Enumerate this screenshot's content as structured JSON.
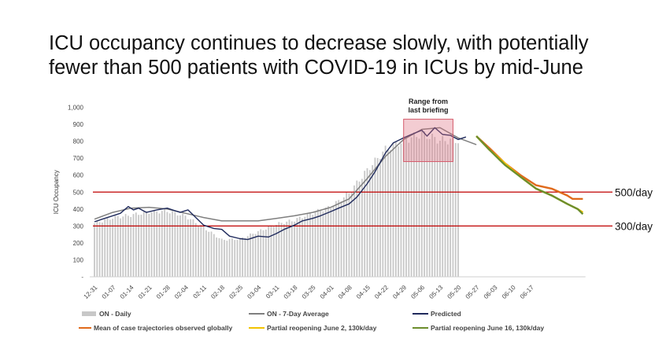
{
  "title_lines": [
    "ICU occupancy continues to decrease slowly, with potentially",
    "fewer than 500 patients with COVID-19 in ICUs by mid-June"
  ],
  "colors": {
    "daily_bar": "#c8c8c8",
    "avg_line": "#7f7f7f",
    "predicted_line": "#1f2a5c",
    "mean_global": "#e06a1b",
    "partial_june2": "#f2c300",
    "partial_june16": "#6c8e2c",
    "threshold": "#c00000",
    "range_box": "#d45a6a"
  },
  "chart_data": {
    "type": "bar",
    "ylabel": "ICU Occupancy",
    "ylim": [
      0,
      1000
    ],
    "yticks": [
      "-",
      "100",
      "200",
      "300",
      "400",
      "500",
      "600",
      "700",
      "800",
      "900",
      "1,000"
    ],
    "xtick_labels": [
      "12-31",
      "01-07",
      "01-14",
      "01-21",
      "01-28",
      "02-04",
      "02-11",
      "02-18",
      "02-25",
      "03-04",
      "03-11",
      "03-18",
      "03-25",
      "04-01",
      "04-08",
      "04-15",
      "04-22",
      "04-29",
      "05-06",
      "05-13",
      "05-20",
      "05-27",
      "06-03",
      "06-10",
      "06-17"
    ],
    "thresholds": [
      {
        "value": 500,
        "label": "500/day"
      },
      {
        "value": 300,
        "label": "300/day"
      }
    ],
    "annotation": {
      "label_lines": [
        "Range from",
        "last briefing"
      ],
      "x_start_day": 119,
      "x_end_day": 138,
      "y_low": 680,
      "y_high": 930
    },
    "series": [
      {
        "name": "ON - Daily",
        "kind": "bar",
        "points": [
          [
            0,
            325
          ],
          [
            7,
            360
          ],
          [
            14,
            375
          ],
          [
            21,
            395
          ],
          [
            28,
            400
          ],
          [
            35,
            370
          ],
          [
            42,
            300
          ],
          [
            49,
            225
          ],
          [
            56,
            230
          ],
          [
            63,
            275
          ],
          [
            70,
            320
          ],
          [
            77,
            345
          ],
          [
            84,
            390
          ],
          [
            91,
            425
          ],
          [
            98,
            510
          ],
          [
            105,
            650
          ],
          [
            112,
            775
          ],
          [
            119,
            830
          ],
          [
            126,
            870
          ],
          [
            133,
            830
          ],
          [
            140,
            830
          ]
        ]
      },
      {
        "name": "ON - 7-Day Average",
        "kind": "line",
        "points": [
          [
            0,
            340
          ],
          [
            7,
            380
          ],
          [
            14,
            405
          ],
          [
            21,
            410
          ],
          [
            28,
            400
          ],
          [
            35,
            375
          ],
          [
            42,
            350
          ],
          [
            49,
            330
          ],
          [
            56,
            330
          ],
          [
            63,
            330
          ],
          [
            70,
            345
          ],
          [
            77,
            360
          ],
          [
            84,
            380
          ],
          [
            91,
            410
          ],
          [
            98,
            460
          ],
          [
            105,
            580
          ],
          [
            112,
            710
          ],
          [
            119,
            810
          ],
          [
            126,
            870
          ],
          [
            133,
            880
          ],
          [
            140,
            820
          ],
          [
            147,
            780
          ]
        ]
      },
      {
        "name": "Predicted",
        "kind": "line",
        "points": [
          [
            0,
            325
          ],
          [
            3,
            340
          ],
          [
            7,
            360
          ],
          [
            10,
            375
          ],
          [
            13,
            415
          ],
          [
            15,
            395
          ],
          [
            17,
            405
          ],
          [
            20,
            380
          ],
          [
            24,
            395
          ],
          [
            28,
            405
          ],
          [
            30,
            395
          ],
          [
            33,
            380
          ],
          [
            36,
            395
          ],
          [
            39,
            350
          ],
          [
            42,
            305
          ],
          [
            46,
            285
          ],
          [
            49,
            280
          ],
          [
            52,
            240
          ],
          [
            56,
            225
          ],
          [
            59,
            220
          ],
          [
            63,
            240
          ],
          [
            67,
            235
          ],
          [
            70,
            255
          ],
          [
            73,
            280
          ],
          [
            77,
            305
          ],
          [
            80,
            330
          ],
          [
            84,
            345
          ],
          [
            87,
            360
          ],
          [
            91,
            385
          ],
          [
            94,
            405
          ],
          [
            98,
            430
          ],
          [
            101,
            470
          ],
          [
            105,
            550
          ],
          [
            108,
            620
          ],
          [
            112,
            730
          ],
          [
            115,
            790
          ],
          [
            119,
            820
          ],
          [
            122,
            840
          ],
          [
            126,
            865
          ],
          [
            128,
            830
          ],
          [
            131,
            880
          ],
          [
            134,
            840
          ],
          [
            137,
            835
          ],
          [
            140,
            810
          ],
          [
            143,
            825
          ]
        ]
      },
      {
        "name": "Mean of case trajectories observed globally",
        "kind": "line",
        "points": [
          [
            147,
            830
          ],
          [
            152,
            760
          ],
          [
            158,
            670
          ],
          [
            164,
            600
          ],
          [
            170,
            540
          ],
          [
            176,
            520
          ],
          [
            182,
            480
          ],
          [
            184,
            460
          ],
          [
            188,
            460
          ]
        ]
      },
      {
        "name": "Partial reopening June 2, 130k/day",
        "kind": "line",
        "points": [
          [
            147,
            830
          ],
          [
            152,
            750
          ],
          [
            158,
            670
          ],
          [
            164,
            590
          ],
          [
            170,
            520
          ],
          [
            176,
            480
          ],
          [
            182,
            430
          ],
          [
            186,
            400
          ],
          [
            188,
            380
          ]
        ]
      },
      {
        "name": "Partial reopening June 16, 130k/day",
        "kind": "line",
        "points": [
          [
            147,
            830
          ],
          [
            152,
            750
          ],
          [
            158,
            660
          ],
          [
            164,
            590
          ],
          [
            170,
            520
          ],
          [
            176,
            480
          ],
          [
            182,
            430
          ],
          [
            186,
            400
          ],
          [
            188,
            370
          ]
        ]
      }
    ]
  }
}
